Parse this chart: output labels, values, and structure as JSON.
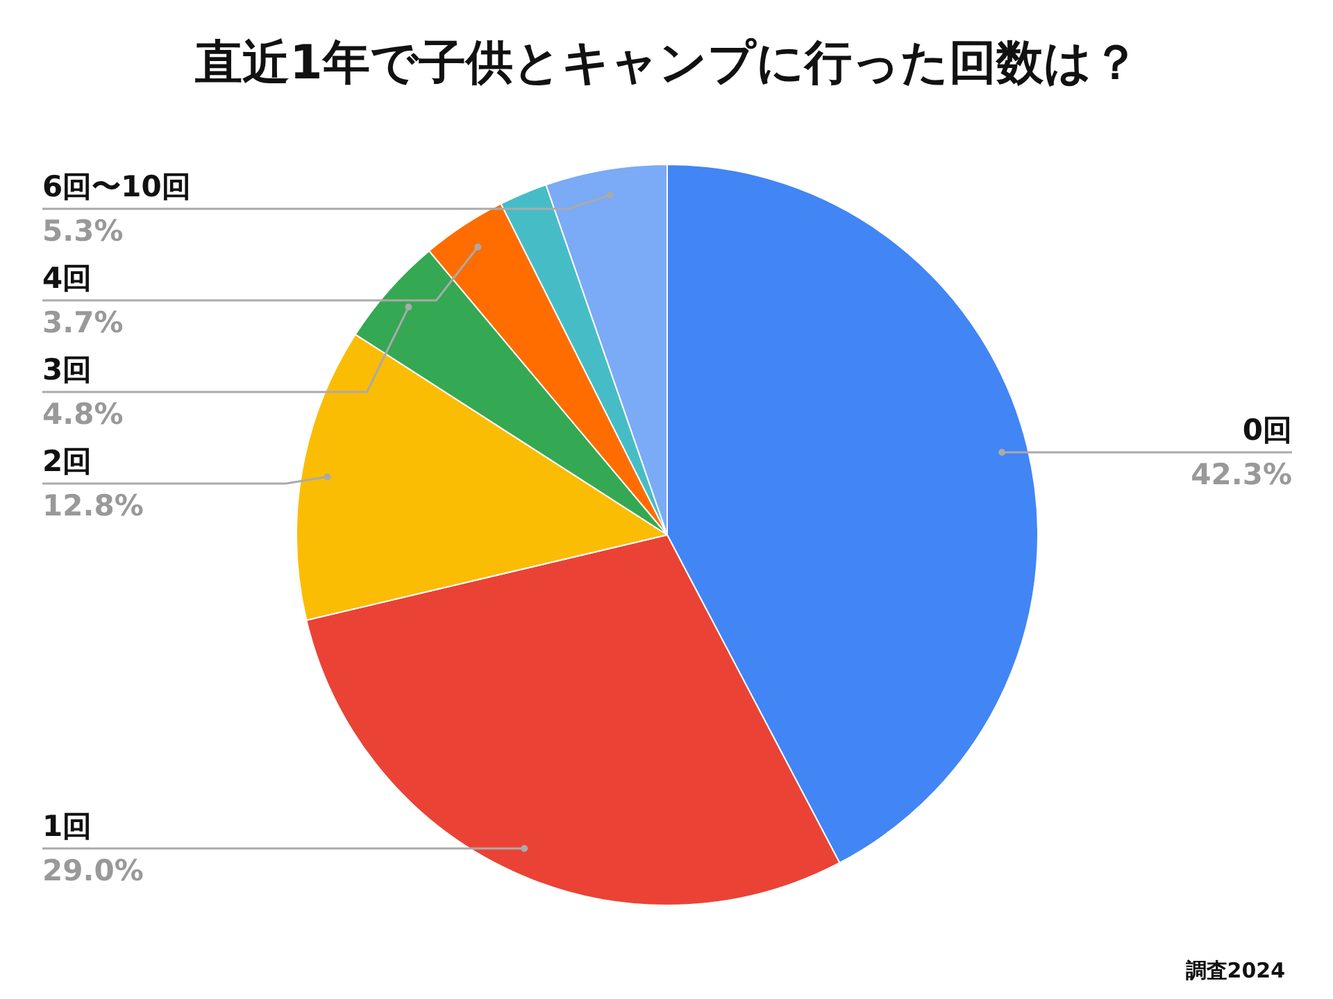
{
  "chart_data": {
    "type": "pie",
    "title": "直近1年で子供とキャンプに行った回数は？",
    "categories": [
      "0回",
      "1回",
      "2回",
      "3回",
      "4回",
      null,
      "6回〜10回"
    ],
    "values": [
      42.3,
      29.0,
      12.8,
      4.8,
      3.7,
      2.1,
      5.3
    ],
    "colors": [
      "#4285f4",
      "#ea4335",
      "#fbbc04",
      "#34a853",
      "#ff6d01",
      "#46bdc6",
      "#7baaf7"
    ],
    "value_labels": [
      "42.3%",
      "29.0%",
      "12.8%",
      "4.8%",
      "3.7%",
      null,
      "5.3%"
    ],
    "annotations": [
      "調査2024"
    ]
  }
}
